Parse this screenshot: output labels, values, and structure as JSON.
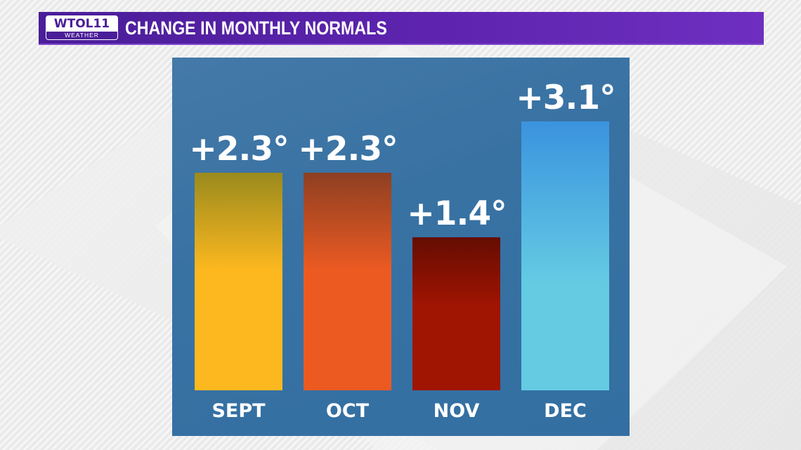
{
  "header": {
    "logo_main": "WTOL11",
    "logo_sub": "WEATHER",
    "title": "CHANGE IN MONTHLY NORMALS",
    "color": "#5c23ad"
  },
  "chart_data": {
    "type": "bar",
    "title": "CHANGE IN MONTHLY NORMALS",
    "categories": [
      "SEPT",
      "OCT",
      "NOV",
      "DEC"
    ],
    "values": [
      2.3,
      2.3,
      1.4,
      3.1
    ],
    "value_labels": [
      "+2.3°",
      "+2.3°",
      "+1.4°",
      "+3.1°"
    ],
    "unit": "°",
    "xlabel": "",
    "ylabel": "",
    "grid": false,
    "legend": "none",
    "bar_colors": [
      {
        "top": "#9a8a1e",
        "bottom": "#fdb81f"
      },
      {
        "top": "#8e3f22",
        "bottom": "#ec5a22"
      },
      {
        "top": "#650d02",
        "bottom": "#a01402"
      },
      {
        "top": "#3b93de",
        "bottom": "#64cbe3"
      }
    ],
    "panel_color": "#3571a3"
  }
}
